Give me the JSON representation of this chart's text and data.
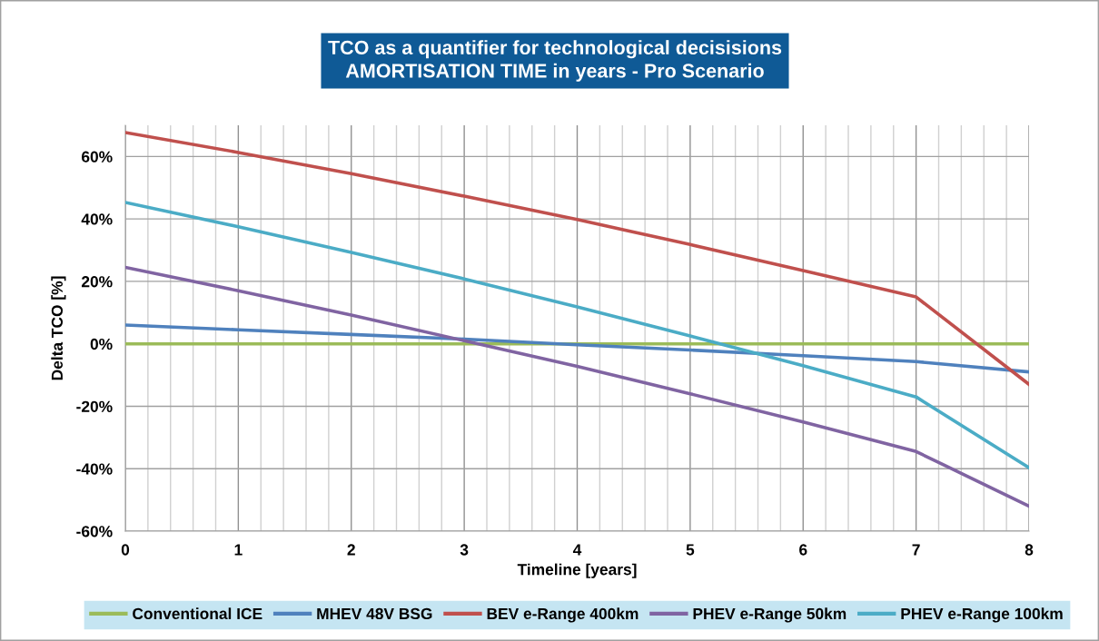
{
  "chart_data": {
    "type": "line",
    "title": "TCO as a quantifier for technological decisisions\nAMORTISATION TIME in years - Pro Scenario",
    "xlabel": "Timeline [years]",
    "ylabel": "Delta TCO [%]",
    "x": [
      0,
      1,
      2,
      3,
      4,
      5,
      6,
      7,
      8
    ],
    "series": [
      {
        "name": "Conventional ICE",
        "color": "#9bbb59",
        "values": [
          0,
          0,
          0,
          0,
          0,
          0,
          0,
          0,
          0
        ]
      },
      {
        "name": "MHEV 48V BSG",
        "color": "#4f81bd",
        "values": [
          6,
          4.5,
          3,
          1.5,
          -0.3,
          -2,
          -3.8,
          -5.7,
          -9
        ]
      },
      {
        "name": "BEV e-Range 400km",
        "color": "#c0504d",
        "values": [
          67.7,
          61.3,
          54.5,
          47.3,
          39.8,
          31.8,
          23.5,
          15,
          -13
        ]
      },
      {
        "name": "PHEV e-Range 50km",
        "color": "#8064a2",
        "values": [
          24.5,
          17,
          9.2,
          1,
          -7.2,
          -16,
          -25,
          -34.5,
          -52
        ]
      },
      {
        "name": "PHEV e-Range 100km",
        "color": "#4bacc6",
        "values": [
          45.3,
          37.5,
          29.3,
          20.8,
          11.8,
          2.5,
          -7,
          -17,
          -39.7
        ]
      }
    ],
    "xlim": [
      0,
      8
    ],
    "xticks": [
      0,
      {
        "value": 0.2,
        "label": null
      },
      {
        "value": 0.4,
        "label": null
      },
      {
        "value": 0.6,
        "label": null
      },
      {
        "value": 0.8,
        "label": null
      },
      1,
      {
        "value": 1.2,
        "label": null
      },
      {
        "value": 1.4,
        "label": null
      },
      {
        "value": 1.6,
        "label": null
      },
      {
        "value": 1.8,
        "label": null
      },
      2,
      {
        "value": 2.2,
        "label": null
      },
      {
        "value": 2.4,
        "label": null
      },
      {
        "value": 2.6,
        "label": null
      },
      {
        "value": 2.8,
        "label": null
      },
      3,
      {
        "value": 3.2,
        "label": null
      },
      {
        "value": 3.4,
        "label": null
      },
      {
        "value": 3.6,
        "label": null
      },
      {
        "value": 3.8,
        "label": null
      },
      4,
      {
        "value": 4.2,
        "label": null
      },
      {
        "value": 4.4,
        "label": null
      },
      {
        "value": 4.6,
        "label": null
      },
      {
        "value": 4.8,
        "label": null
      },
      5,
      {
        "value": 5.2,
        "label": null
      },
      {
        "value": 5.4,
        "label": null
      },
      {
        "value": 5.6,
        "label": null
      },
      {
        "value": 5.8,
        "label": null
      },
      6,
      {
        "value": 6.2,
        "label": null
      },
      {
        "value": 6.4,
        "label": null
      },
      {
        "value": 6.6,
        "label": null
      },
      {
        "value": 6.8,
        "label": null
      },
      7,
      {
        "value": 7.2,
        "label": null
      },
      {
        "value": 7.4,
        "label": null
      },
      {
        "value": 7.6,
        "label": null
      },
      {
        "value": 7.8,
        "label": null
      },
      8
    ],
    "ylim": [
      -60,
      70
    ],
    "yticks": [
      {
        "value": -60,
        "label": "-60%"
      },
      {
        "value": -40,
        "label": "-40%"
      },
      {
        "value": -20,
        "label": "-20%"
      },
      {
        "value": 0,
        "label": "0%"
      },
      {
        "value": 20,
        "label": "20%"
      },
      {
        "value": 40,
        "label": "40%"
      },
      {
        "value": 60,
        "label": "60%"
      }
    ],
    "grid": true,
    "legend": "bottom",
    "marker": "none",
    "line_style": "solid"
  }
}
